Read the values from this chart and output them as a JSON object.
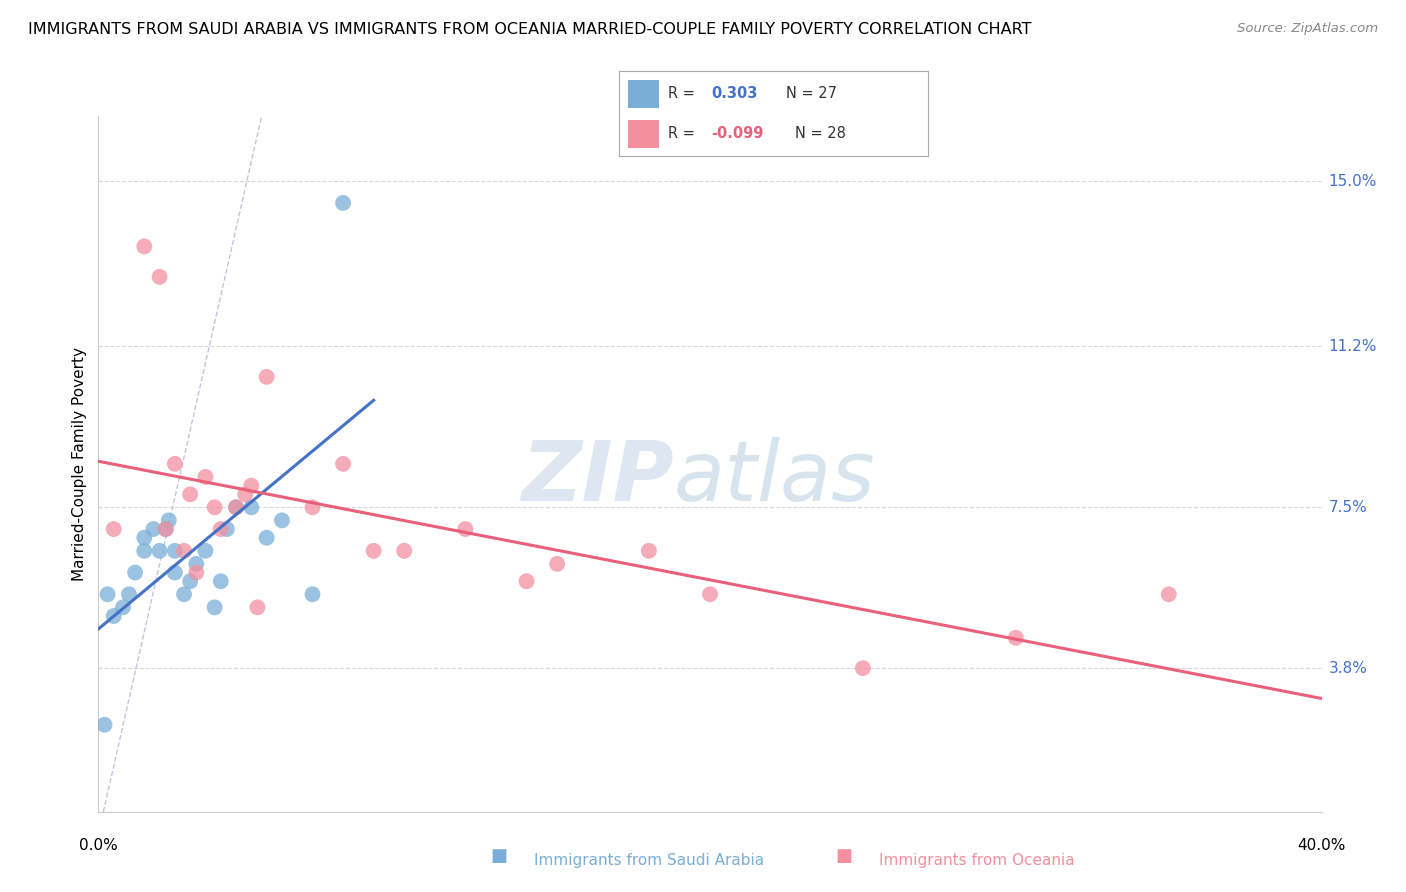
{
  "title": "IMMIGRANTS FROM SAUDI ARABIA VS IMMIGRANTS FROM OCEANIA MARRIED-COUPLE FAMILY POVERTY CORRELATION CHART",
  "source": "Source: ZipAtlas.com",
  "ylabel": "Married-Couple Family Poverty",
  "ytick_labels": [
    "3.8%",
    "7.5%",
    "11.2%",
    "15.0%"
  ],
  "ytick_values": [
    3.8,
    7.5,
    11.2,
    15.0
  ],
  "xlim": [
    0.0,
    40.0
  ],
  "ylim": [
    0.5,
    16.5
  ],
  "watermark_zip": "ZIP",
  "watermark_atlas": "atlas",
  "saudi_x": [
    0.3,
    0.5,
    0.8,
    1.0,
    1.2,
    1.5,
    1.5,
    1.8,
    2.0,
    2.2,
    2.3,
    2.5,
    2.5,
    2.8,
    3.0,
    3.2,
    3.5,
    3.8,
    4.0,
    4.2,
    4.5,
    5.0,
    5.5,
    6.0,
    7.0,
    8.0,
    0.2
  ],
  "saudi_y": [
    5.5,
    5.0,
    5.2,
    5.5,
    6.0,
    6.5,
    6.8,
    7.0,
    6.5,
    7.0,
    7.2,
    6.0,
    6.5,
    5.5,
    5.8,
    6.2,
    6.5,
    5.2,
    5.8,
    7.0,
    7.5,
    7.5,
    6.8,
    7.2,
    5.5,
    14.5,
    2.5
  ],
  "oceania_x": [
    0.5,
    1.5,
    2.0,
    2.5,
    2.8,
    3.0,
    3.5,
    3.8,
    4.0,
    4.5,
    4.8,
    5.0,
    5.5,
    7.0,
    8.0,
    9.0,
    10.0,
    12.0,
    14.0,
    15.0,
    18.0,
    20.0,
    25.0,
    30.0,
    35.0,
    2.2,
    3.2,
    5.2
  ],
  "oceania_y": [
    7.0,
    13.5,
    12.8,
    8.5,
    6.5,
    7.8,
    8.2,
    7.5,
    7.0,
    7.5,
    7.8,
    8.0,
    10.5,
    7.5,
    8.5,
    6.5,
    6.5,
    7.0,
    5.8,
    6.2,
    6.5,
    5.5,
    3.8,
    4.5,
    5.5,
    7.0,
    6.0,
    5.2
  ],
  "saudi_color": "#7aaed6",
  "oceania_color": "#f48fa0",
  "saudi_line_color": "#4472c4",
  "oceania_line_color": "#e8607a",
  "ref_line_color": "#b0b8d8",
  "grid_color": "#d8d8d8",
  "legend_r1": "R =  0.303",
  "legend_n1": "N = 27",
  "legend_r2": "R = -0.099",
  "legend_n2": "N = 28",
  "legend_r_color": "#4472c4",
  "legend_n_color": "#333333",
  "bottom_label1": "Immigrants from Saudi Arabia",
  "bottom_label2": "Immigrants from Oceania"
}
